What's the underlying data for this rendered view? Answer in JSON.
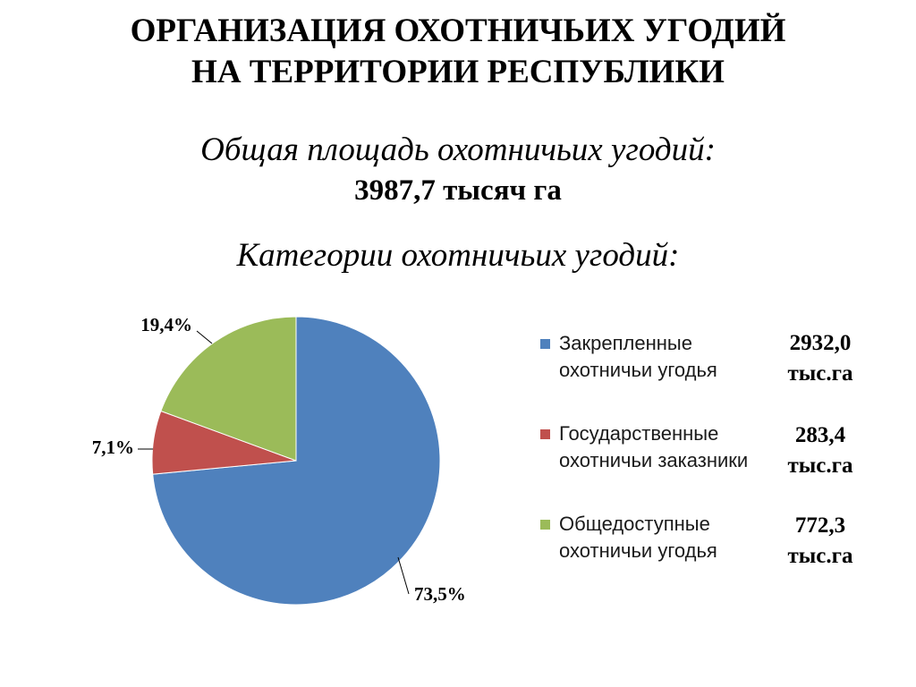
{
  "slide": {
    "title_line1": "ОРГАНИЗАЦИЯ ОХОТНИЧЬИХ УГОДИЙ",
    "title_line2": "НА ТЕРРИТОРИИ РЕСПУБЛИКИ",
    "subtitle": "Общая площадь охотничьих угодий:",
    "total": "3987,7 тысяч га",
    "categories_heading": "Категории охотничьих угодий:"
  },
  "chart_data": {
    "type": "pie",
    "title": "",
    "categories": [
      "Закрепленные охотничьи угодья",
      "Государственные охотничьи заказники",
      "Общедоступные охотничьи угодья"
    ],
    "values": [
      73.5,
      7.1,
      19.4
    ],
    "unit": "%",
    "data_labels": [
      "73,5%",
      "7,1%",
      "19,4%"
    ],
    "colors": [
      "#4f81bd",
      "#c0504d",
      "#9bbb59"
    ],
    "legend_position": "right",
    "legend_values": [
      "2932,0 тыс.га",
      "283,4 тыс.га",
      "772,3 тыс.га"
    ],
    "absolute_values_thousand_ha": [
      2932.0,
      283.4,
      772.3
    ]
  }
}
